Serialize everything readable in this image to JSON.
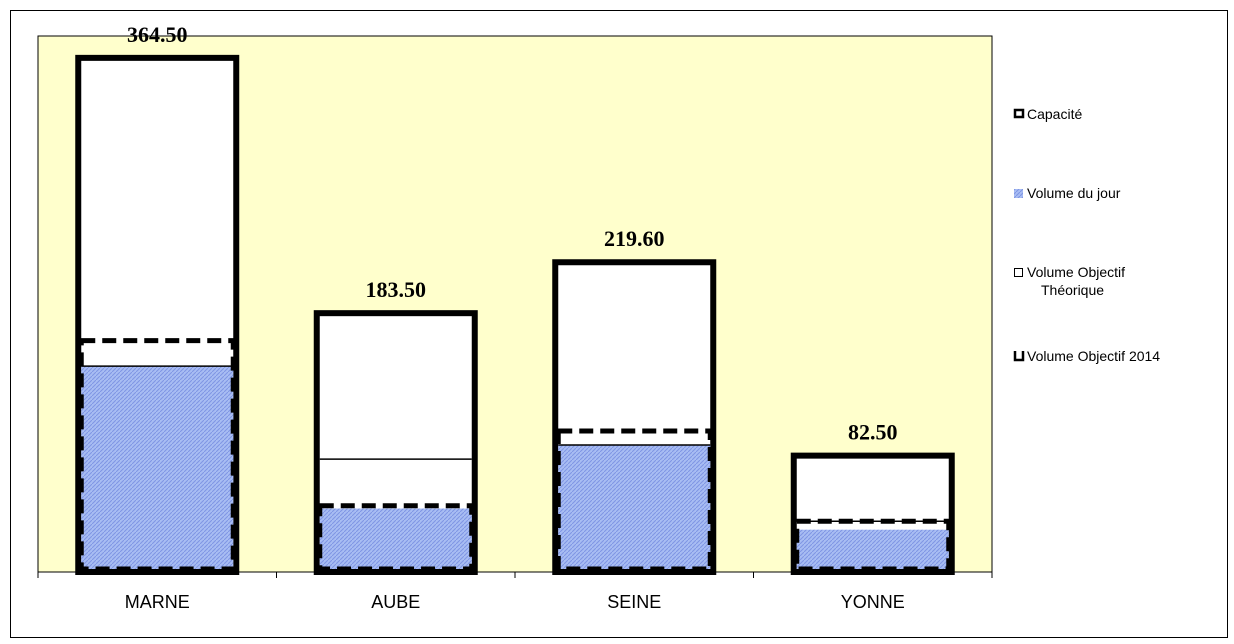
{
  "chart_data": {
    "type": "bar",
    "categories": [
      "MARNE",
      "AUBE",
      "SEINE",
      "YONNE"
    ],
    "ylim": [
      0,
      380
    ],
    "series": [
      {
        "name": "Capacité",
        "values": [
          364.5,
          183.5,
          219.6,
          82.5
        ]
      },
      {
        "name": "Volume du jour",
        "values": [
          146,
          45,
          90,
          30
        ]
      },
      {
        "name": "Volume Objectif Théorique",
        "values": [
          146,
          80,
          90,
          36
        ]
      },
      {
        "name": "Volume Objectif 2014",
        "values": [
          164,
          47,
          100,
          36
        ]
      }
    ],
    "value_labels": [
      "364.50",
      "183.50",
      "219.60",
      "82.50"
    ],
    "colors": {
      "plot_background": "#ffffcc",
      "volume_fill": "#9aaef0",
      "outline": "#000000"
    },
    "legend_position": "right",
    "grid": false
  },
  "legend": {
    "items": [
      {
        "label": "Capacité",
        "icon": "capacity-marker"
      },
      {
        "label": "Volume du jour",
        "icon": "volume-hatch-marker"
      },
      {
        "label": "Volume Objectif",
        "label2": "Théorique",
        "icon": "objective-theoretical-marker"
      },
      {
        "label": "Volume Objectif 2014",
        "icon": "objective-2014-marker"
      }
    ]
  }
}
